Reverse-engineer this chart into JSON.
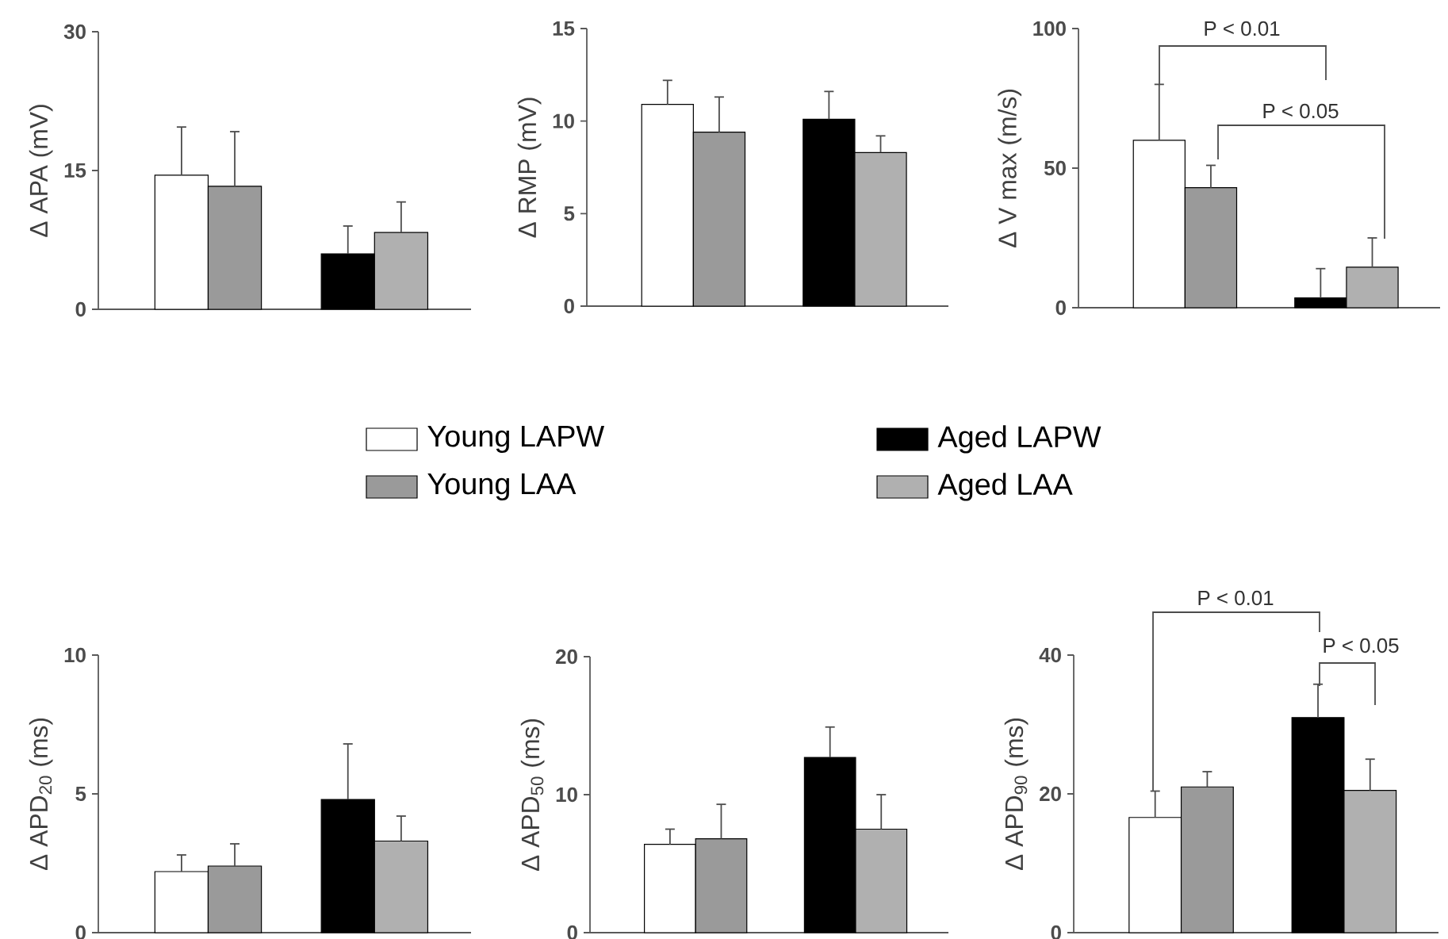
{
  "chart_data": [
    {
      "type": "bar",
      "ylabel": "Δ APA (mV)",
      "categories": [
        null,
        null
      ],
      "ylim": [
        0,
        30
      ],
      "yticks": [
        0,
        15,
        30
      ],
      "legend": "bottom",
      "series": [
        {
          "name": "Young LAPW",
          "color": "#ffffff",
          "values": [
            14.5,
            null
          ],
          "errors": [
            [
              14.5,
              19.7
            ],
            null
          ]
        },
        {
          "name": "Young LAA",
          "color": "#9a9a9a",
          "values": [
            13.3,
            null
          ],
          "errors": [
            [
              13.3,
              19.2
            ],
            null
          ]
        },
        {
          "name": "Aged LAPW",
          "color": "#000000",
          "values": [
            null,
            6.0
          ],
          "errors": [
            null,
            [
              6.0,
              9.0
            ]
          ]
        },
        {
          "name": "Aged LAA",
          "color": "#b0b0b0",
          "values": [
            null,
            8.3
          ],
          "errors": [
            null,
            [
              8.3,
              11.6
            ]
          ]
        }
      ]
    },
    {
      "type": "bar",
      "ylabel": "Δ RMP (mV)",
      "categories": [
        null,
        null
      ],
      "ylim": [
        0,
        15
      ],
      "yticks": [
        0,
        5,
        10,
        15
      ],
      "series": [
        {
          "color": "#ffffff",
          "values": [
            10.9,
            null
          ],
          "errors": [
            [
              10.9,
              12.2
            ],
            null
          ]
        },
        {
          "color": "#9a9a9a",
          "values": [
            9.4,
            null
          ],
          "errors": [
            [
              9.4,
              11.3
            ],
            null
          ]
        },
        {
          "color": "#000000",
          "values": [
            null,
            10.1
          ],
          "errors": [
            null,
            [
              10.1,
              11.6
            ]
          ]
        },
        {
          "color": "#b0b0b0",
          "values": [
            null,
            8.3
          ],
          "errors": [
            null,
            [
              8.3,
              9.2
            ]
          ]
        }
      ]
    },
    {
      "type": "bar",
      "ylabel": "Δ V max (m/s)",
      "categories": [
        null,
        null
      ],
      "ylim": [
        0,
        100
      ],
      "yticks": [
        0,
        50,
        100
      ],
      "annotations": [
        "P < 0.01",
        "P < 0.05"
      ],
      "series": [
        {
          "color": "#ffffff",
          "values": [
            60,
            null
          ],
          "errors": [
            [
              60,
              80
            ],
            null
          ]
        },
        {
          "color": "#9a9a9a",
          "values": [
            43,
            null
          ],
          "errors": [
            [
              43,
              51
            ],
            null
          ]
        },
        {
          "color": "#000000",
          "values": [
            null,
            3.5
          ],
          "errors": [
            null,
            [
              3.5,
              14
            ]
          ]
        },
        {
          "color": "#b0b0b0",
          "values": [
            null,
            14.5
          ],
          "errors": [
            null,
            [
              14.5,
              25
            ]
          ]
        }
      ]
    },
    {
      "type": "bar",
      "ylabel": "Δ APD$_{20}$ (ms)",
      "categories": [
        null,
        null
      ],
      "ylim": [
        0,
        10
      ],
      "yticks": [
        0,
        5,
        10
      ],
      "series": [
        {
          "color": "#ffffff",
          "values": [
            2.2,
            null
          ],
          "errors": [
            [
              2.2,
              2.8
            ],
            null
          ]
        },
        {
          "color": "#9a9a9a",
          "values": [
            2.4,
            null
          ],
          "errors": [
            [
              2.4,
              3.2
            ],
            null
          ]
        },
        {
          "color": "#000000",
          "values": [
            null,
            4.8
          ],
          "errors": [
            null,
            [
              4.8,
              6.8
            ]
          ]
        },
        {
          "color": "#b0b0b0",
          "values": [
            null,
            3.3
          ],
          "errors": [
            null,
            [
              3.3,
              4.2
            ]
          ]
        }
      ]
    },
    {
      "type": "bar",
      "ylabel": "Δ APD$_{50}$ (ms)",
      "categories": [
        null,
        null
      ],
      "ylim": [
        0,
        20
      ],
      "yticks": [
        0,
        10,
        20
      ],
      "series": [
        {
          "color": "#ffffff",
          "values": [
            6.4,
            null
          ],
          "errors": [
            [
              6.4,
              7.5
            ],
            null
          ]
        },
        {
          "color": "#9a9a9a",
          "values": [
            6.8,
            null
          ],
          "errors": [
            [
              6.8,
              9.3
            ],
            null
          ]
        },
        {
          "color": "#000000",
          "values": [
            null,
            12.7
          ],
          "errors": [
            null,
            [
              12.7,
              14.9
            ]
          ]
        },
        {
          "color": "#b0b0b0",
          "values": [
            null,
            7.5
          ],
          "errors": [
            null,
            [
              7.5,
              10.0
            ]
          ]
        }
      ]
    },
    {
      "type": "bar",
      "ylabel": "Δ APD$_{90}$ (ms)",
      "categories": [
        null,
        null
      ],
      "ylim": [
        0,
        40
      ],
      "yticks": [
        0,
        20,
        40
      ],
      "annotations": [
        "P < 0.01",
        "P < 0.05"
      ],
      "series": [
        {
          "color": "#ffffff",
          "values": [
            16.6,
            null
          ],
          "errors": [
            [
              16.6,
              20.4
            ],
            null
          ]
        },
        {
          "color": "#9a9a9a",
          "values": [
            21.0,
            null
          ],
          "errors": [
            [
              21.0,
              23.2
            ],
            null
          ]
        },
        {
          "color": "#000000",
          "values": [
            null,
            31.0
          ],
          "errors": [
            null,
            [
              31.0,
              35.8
            ]
          ]
        },
        {
          "color": "#b0b0b0",
          "values": [
            null,
            20.5
          ],
          "errors": [
            null,
            [
              20.5,
              25.0
            ]
          ]
        }
      ]
    }
  ]
}
